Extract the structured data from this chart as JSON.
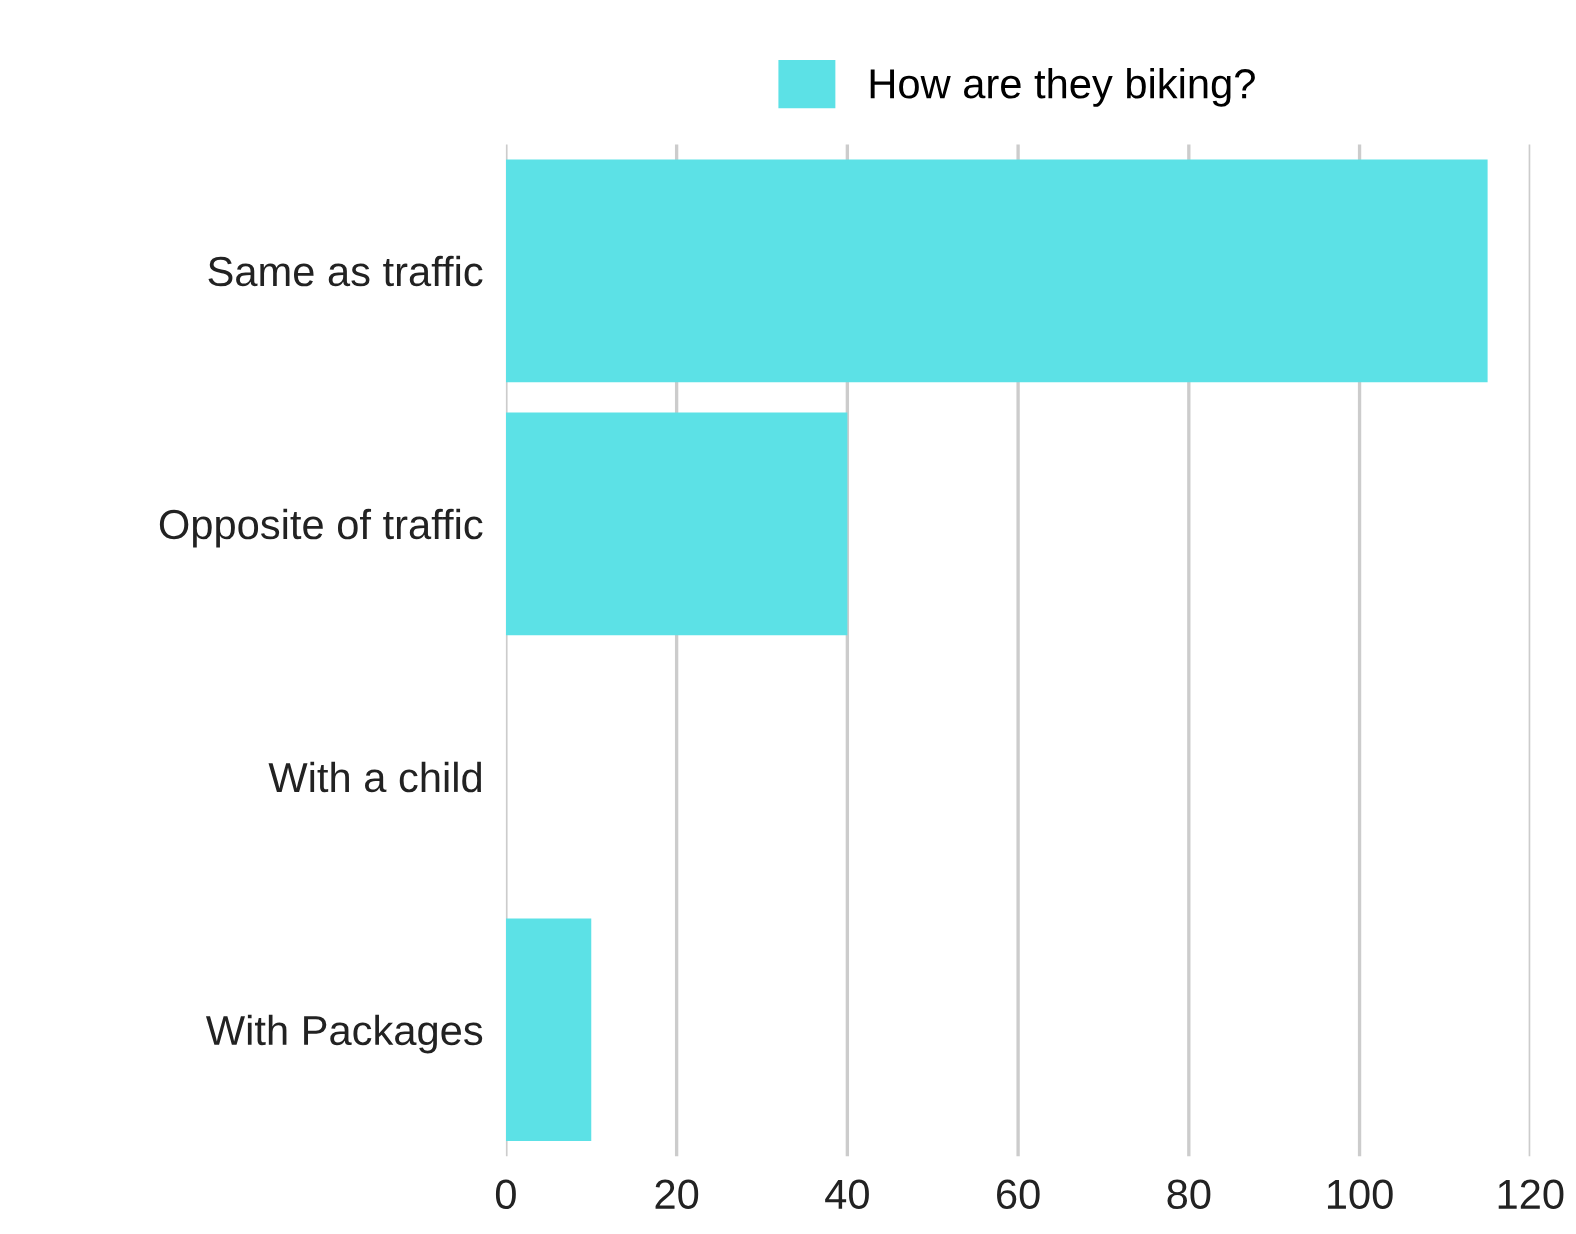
{
  "chart_data": {
    "type": "bar",
    "orientation": "horizontal",
    "categories": [
      "Same as traffic",
      "Opposite of traffic",
      "With a child",
      "With Packages"
    ],
    "series": [
      {
        "name": "How are they biking?",
        "color": "#5ce1e6",
        "values": [
          115,
          40,
          0,
          10
        ]
      }
    ],
    "xlim": [
      0,
      120
    ],
    "xticks": [
      0,
      20,
      40,
      60,
      80,
      100,
      120
    ],
    "grid": "x",
    "legend": "top"
  }
}
